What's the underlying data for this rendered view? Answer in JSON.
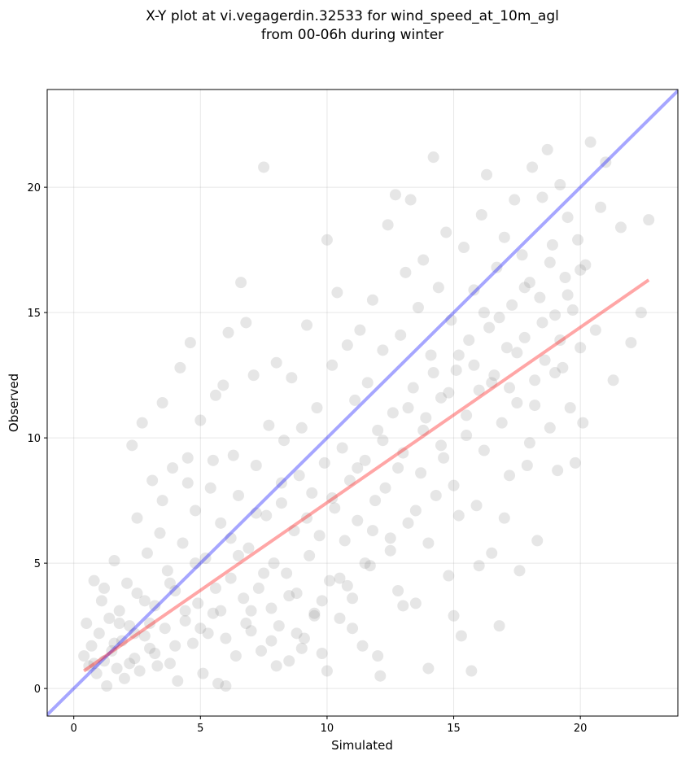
{
  "chart_data": {
    "type": "scatter",
    "title_lines": [
      "X-Y plot at vi.vegagerdin.32533 for wind_speed_at_10m_agl",
      "from 00-06h during winter"
    ],
    "xlabel": "Simulated",
    "ylabel": "Observed",
    "xlim": [
      -1.05,
      23.85
    ],
    "ylim": [
      -1.1,
      23.9
    ],
    "xticks": [
      0,
      5,
      10,
      15,
      20
    ],
    "yticks": [
      0,
      5,
      10,
      15,
      20
    ],
    "grid": true,
    "identity_line": {
      "x": [
        -1.05,
        23.85
      ],
      "y": [
        -1.05,
        23.85
      ],
      "color": "#0000ff"
    },
    "fit_line": {
      "x": [
        0.4,
        22.7
      ],
      "y": [
        0.7,
        16.3
      ],
      "color": "#ff0000"
    },
    "point_color": "#808080",
    "points": [
      [
        0.4,
        1.3
      ],
      [
        0.5,
        2.6
      ],
      [
        0.6,
        0.9
      ],
      [
        0.7,
        1.7
      ],
      [
        0.8,
        4.3
      ],
      [
        0.9,
        0.6
      ],
      [
        1.0,
        2.2
      ],
      [
        1.1,
        3.5
      ],
      [
        1.2,
        1.1
      ],
      [
        1.3,
        0.1
      ],
      [
        1.4,
        2.8
      ],
      [
        1.5,
        1.5
      ],
      [
        1.6,
        5.1
      ],
      [
        1.7,
        0.8
      ],
      [
        1.8,
        3.1
      ],
      [
        1.9,
        1.9
      ],
      [
        2.0,
        0.4
      ],
      [
        2.1,
        4.2
      ],
      [
        2.2,
        2.5
      ],
      [
        2.3,
        9.7
      ],
      [
        2.4,
        1.2
      ],
      [
        2.5,
        3.8
      ],
      [
        2.6,
        0.7
      ],
      [
        2.7,
        10.6
      ],
      [
        2.8,
        2.1
      ],
      [
        2.9,
        5.4
      ],
      [
        3.0,
        1.6
      ],
      [
        3.1,
        8.3
      ],
      [
        3.2,
        3.3
      ],
      [
        3.3,
        0.9
      ],
      [
        3.4,
        6.2
      ],
      [
        3.5,
        11.4
      ],
      [
        3.6,
        2.4
      ],
      [
        3.7,
        4.7
      ],
      [
        3.8,
        1.0
      ],
      [
        3.9,
        8.8
      ],
      [
        4.0,
        3.9
      ],
      [
        4.1,
        0.3
      ],
      [
        4.2,
        12.8
      ],
      [
        4.3,
        5.8
      ],
      [
        4.4,
        2.7
      ],
      [
        4.5,
        9.2
      ],
      [
        4.6,
        13.8
      ],
      [
        4.7,
        1.8
      ],
      [
        4.8,
        7.1
      ],
      [
        4.9,
        3.4
      ],
      [
        5.0,
        10.7
      ],
      [
        5.1,
        0.6
      ],
      [
        5.2,
        5.2
      ],
      [
        5.3,
        2.2
      ],
      [
        5.4,
        8.0
      ],
      [
        5.5,
        3.0
      ],
      [
        5.6,
        11.7
      ],
      [
        5.7,
        0.2
      ],
      [
        5.8,
        6.6
      ],
      [
        5.9,
        12.1
      ],
      [
        6.0,
        2.0
      ],
      [
        6.1,
        14.2
      ],
      [
        6.2,
        4.4
      ],
      [
        6.3,
        9.3
      ],
      [
        6.4,
        1.3
      ],
      [
        6.5,
        7.7
      ],
      [
        6.6,
        16.2
      ],
      [
        6.7,
        3.6
      ],
      [
        6.8,
        14.6
      ],
      [
        6.9,
        5.6
      ],
      [
        7.0,
        2.3
      ],
      [
        7.1,
        12.5
      ],
      [
        7.2,
        8.9
      ],
      [
        7.3,
        4.0
      ],
      [
        7.4,
        1.5
      ],
      [
        7.5,
        20.8
      ],
      [
        7.6,
        6.9
      ],
      [
        7.7,
        10.5
      ],
      [
        7.8,
        3.2
      ],
      [
        7.9,
        5.0
      ],
      [
        8.0,
        13.0
      ],
      [
        8.1,
        2.5
      ],
      [
        8.2,
        7.4
      ],
      [
        8.3,
        9.9
      ],
      [
        8.4,
        4.6
      ],
      [
        8.5,
        1.1
      ],
      [
        8.6,
        12.4
      ],
      [
        8.7,
        6.3
      ],
      [
        8.8,
        3.8
      ],
      [
        8.9,
        8.5
      ],
      [
        9.0,
        10.4
      ],
      [
        9.1,
        2.0
      ],
      [
        9.2,
        14.5
      ],
      [
        9.3,
        5.3
      ],
      [
        9.4,
        7.8
      ],
      [
        9.5,
        3.0
      ],
      [
        9.6,
        11.2
      ],
      [
        9.7,
        6.1
      ],
      [
        9.8,
        1.4
      ],
      [
        9.9,
        9.0
      ],
      [
        10.0,
        17.9
      ],
      [
        10.1,
        4.3
      ],
      [
        10.2,
        12.9
      ],
      [
        10.3,
        7.2
      ],
      [
        10.4,
        15.8
      ],
      [
        10.5,
        2.8
      ],
      [
        10.6,
        9.6
      ],
      [
        10.7,
        5.9
      ],
      [
        10.8,
        13.7
      ],
      [
        10.9,
        8.3
      ],
      [
        11.0,
        3.6
      ],
      [
        11.1,
        11.5
      ],
      [
        11.2,
        6.7
      ],
      [
        11.3,
        14.3
      ],
      [
        11.4,
        1.7
      ],
      [
        11.5,
        9.1
      ],
      [
        11.6,
        12.2
      ],
      [
        11.7,
        4.9
      ],
      [
        11.8,
        15.5
      ],
      [
        11.9,
        7.5
      ],
      [
        12.0,
        10.3
      ],
      [
        12.1,
        0.5
      ],
      [
        12.2,
        13.5
      ],
      [
        12.3,
        8.0
      ],
      [
        12.4,
        18.5
      ],
      [
        12.5,
        5.5
      ],
      [
        12.6,
        11.0
      ],
      [
        12.7,
        19.7
      ],
      [
        12.8,
        3.9
      ],
      [
        12.9,
        14.1
      ],
      [
        13.0,
        9.4
      ],
      [
        13.1,
        16.6
      ],
      [
        13.2,
        6.6
      ],
      [
        13.3,
        19.5
      ],
      [
        13.4,
        12.0
      ],
      [
        13.5,
        3.4
      ],
      [
        13.6,
        15.2
      ],
      [
        13.7,
        8.6
      ],
      [
        13.8,
        17.1
      ],
      [
        13.9,
        10.8
      ],
      [
        14.0,
        5.8
      ],
      [
        14.1,
        13.3
      ],
      [
        14.2,
        21.2
      ],
      [
        14.3,
        7.7
      ],
      [
        14.4,
        16.0
      ],
      [
        14.5,
        11.6
      ],
      [
        14.6,
        9.2
      ],
      [
        14.7,
        18.2
      ],
      [
        14.8,
        4.5
      ],
      [
        14.9,
        14.7
      ],
      [
        15.0,
        8.1
      ],
      [
        15.1,
        12.7
      ],
      [
        15.2,
        6.9
      ],
      [
        15.3,
        2.1
      ],
      [
        15.4,
        17.6
      ],
      [
        15.5,
        10.1
      ],
      [
        15.6,
        13.9
      ],
      [
        15.7,
        0.7
      ],
      [
        15.8,
        15.9
      ],
      [
        15.9,
        7.3
      ],
      [
        16.0,
        11.9
      ],
      [
        16.1,
        18.9
      ],
      [
        16.2,
        9.5
      ],
      [
        16.3,
        20.5
      ],
      [
        16.4,
        14.4
      ],
      [
        16.5,
        5.4
      ],
      [
        16.6,
        12.5
      ],
      [
        16.7,
        16.8
      ],
      [
        16.8,
        2.5
      ],
      [
        16.9,
        10.6
      ],
      [
        17.0,
        18.0
      ],
      [
        17.1,
        13.6
      ],
      [
        17.2,
        8.5
      ],
      [
        17.3,
        15.3
      ],
      [
        17.4,
        19.5
      ],
      [
        17.5,
        11.4
      ],
      [
        17.6,
        4.7
      ],
      [
        17.7,
        17.3
      ],
      [
        17.8,
        14.0
      ],
      [
        17.9,
        8.9
      ],
      [
        18.0,
        16.2
      ],
      [
        18.1,
        20.8
      ],
      [
        18.2,
        12.3
      ],
      [
        18.3,
        5.9
      ],
      [
        18.4,
        15.6
      ],
      [
        18.5,
        19.6
      ],
      [
        18.6,
        13.1
      ],
      [
        18.7,
        21.5
      ],
      [
        18.8,
        10.4
      ],
      [
        18.9,
        17.7
      ],
      [
        19.0,
        14.9
      ],
      [
        19.1,
        8.7
      ],
      [
        19.2,
        20.1
      ],
      [
        19.3,
        12.8
      ],
      [
        19.4,
        16.4
      ],
      [
        19.5,
        18.8
      ],
      [
        19.6,
        11.2
      ],
      [
        19.7,
        15.1
      ],
      [
        19.8,
        9.0
      ],
      [
        19.9,
        17.9
      ],
      [
        20.0,
        13.6
      ],
      [
        20.1,
        10.6
      ],
      [
        20.2,
        16.9
      ],
      [
        20.4,
        21.8
      ],
      [
        20.6,
        14.3
      ],
      [
        20.8,
        19.2
      ],
      [
        21.0,
        21.0
      ],
      [
        21.3,
        12.3
      ],
      [
        21.6,
        18.4
      ],
      [
        22.0,
        13.8
      ],
      [
        22.4,
        15.0
      ],
      [
        22.7,
        18.7
      ],
      [
        1.2,
        4.0
      ],
      [
        2.2,
        1.0
      ],
      [
        3.0,
        2.6
      ],
      [
        4.0,
        1.7
      ],
      [
        5.0,
        2.4
      ],
      [
        6.0,
        0.1
      ],
      [
        7.0,
        3.1
      ],
      [
        8.0,
        0.9
      ],
      [
        9.0,
        1.6
      ],
      [
        10.0,
        0.7
      ],
      [
        11.0,
        2.4
      ],
      [
        12.0,
        1.3
      ],
      [
        13.0,
        3.3
      ],
      [
        14.0,
        0.8
      ],
      [
        15.0,
        2.9
      ],
      [
        16.0,
        4.9
      ],
      [
        17.0,
        6.8
      ],
      [
        18.0,
        9.8
      ],
      [
        19.0,
        12.6
      ],
      [
        20.0,
        16.7
      ],
      [
        2.5,
        6.8
      ],
      [
        3.5,
        7.5
      ],
      [
        4.5,
        8.2
      ],
      [
        5.5,
        9.1
      ],
      [
        6.5,
        5.3
      ],
      [
        7.5,
        4.6
      ],
      [
        8.5,
        3.7
      ],
      [
        9.5,
        2.9
      ],
      [
        10.5,
        4.4
      ],
      [
        11.5,
        5.0
      ],
      [
        12.5,
        6.0
      ],
      [
        13.5,
        7.1
      ],
      [
        14.5,
        9.7
      ],
      [
        15.5,
        10.9
      ],
      [
        16.5,
        12.2
      ],
      [
        17.5,
        13.4
      ],
      [
        18.5,
        14.6
      ],
      [
        19.5,
        15.7
      ],
      [
        1.8,
        2.6
      ],
      [
        2.8,
        3.5
      ],
      [
        3.8,
        4.2
      ],
      [
        4.8,
        5.0
      ],
      [
        5.8,
        3.1
      ],
      [
        6.8,
        2.6
      ],
      [
        7.8,
        1.9
      ],
      [
        8.8,
        2.2
      ],
      [
        9.8,
        3.5
      ],
      [
        10.8,
        4.1
      ],
      [
        11.8,
        6.3
      ],
      [
        12.8,
        8.8
      ],
      [
        13.8,
        10.3
      ],
      [
        14.8,
        11.8
      ],
      [
        15.8,
        12.9
      ],
      [
        16.8,
        14.8
      ],
      [
        17.8,
        16.0
      ],
      [
        18.8,
        17.0
      ],
      [
        0.8,
        1.0
      ],
      [
        1.6,
        1.8
      ],
      [
        2.4,
        2.2
      ],
      [
        3.2,
        1.4
      ],
      [
        4.4,
        3.1
      ],
      [
        5.6,
        4.0
      ],
      [
        6.2,
        6.0
      ],
      [
        7.2,
        7.0
      ],
      [
        8.2,
        8.2
      ],
      [
        9.2,
        6.8
      ],
      [
        10.2,
        7.6
      ],
      [
        11.2,
        8.8
      ],
      [
        12.2,
        9.9
      ],
      [
        13.2,
        11.2
      ],
      [
        14.2,
        12.6
      ],
      [
        15.2,
        13.3
      ],
      [
        16.2,
        15.0
      ],
      [
        17.2,
        12.0
      ],
      [
        18.2,
        11.3
      ],
      [
        19.2,
        13.9
      ]
    ]
  }
}
